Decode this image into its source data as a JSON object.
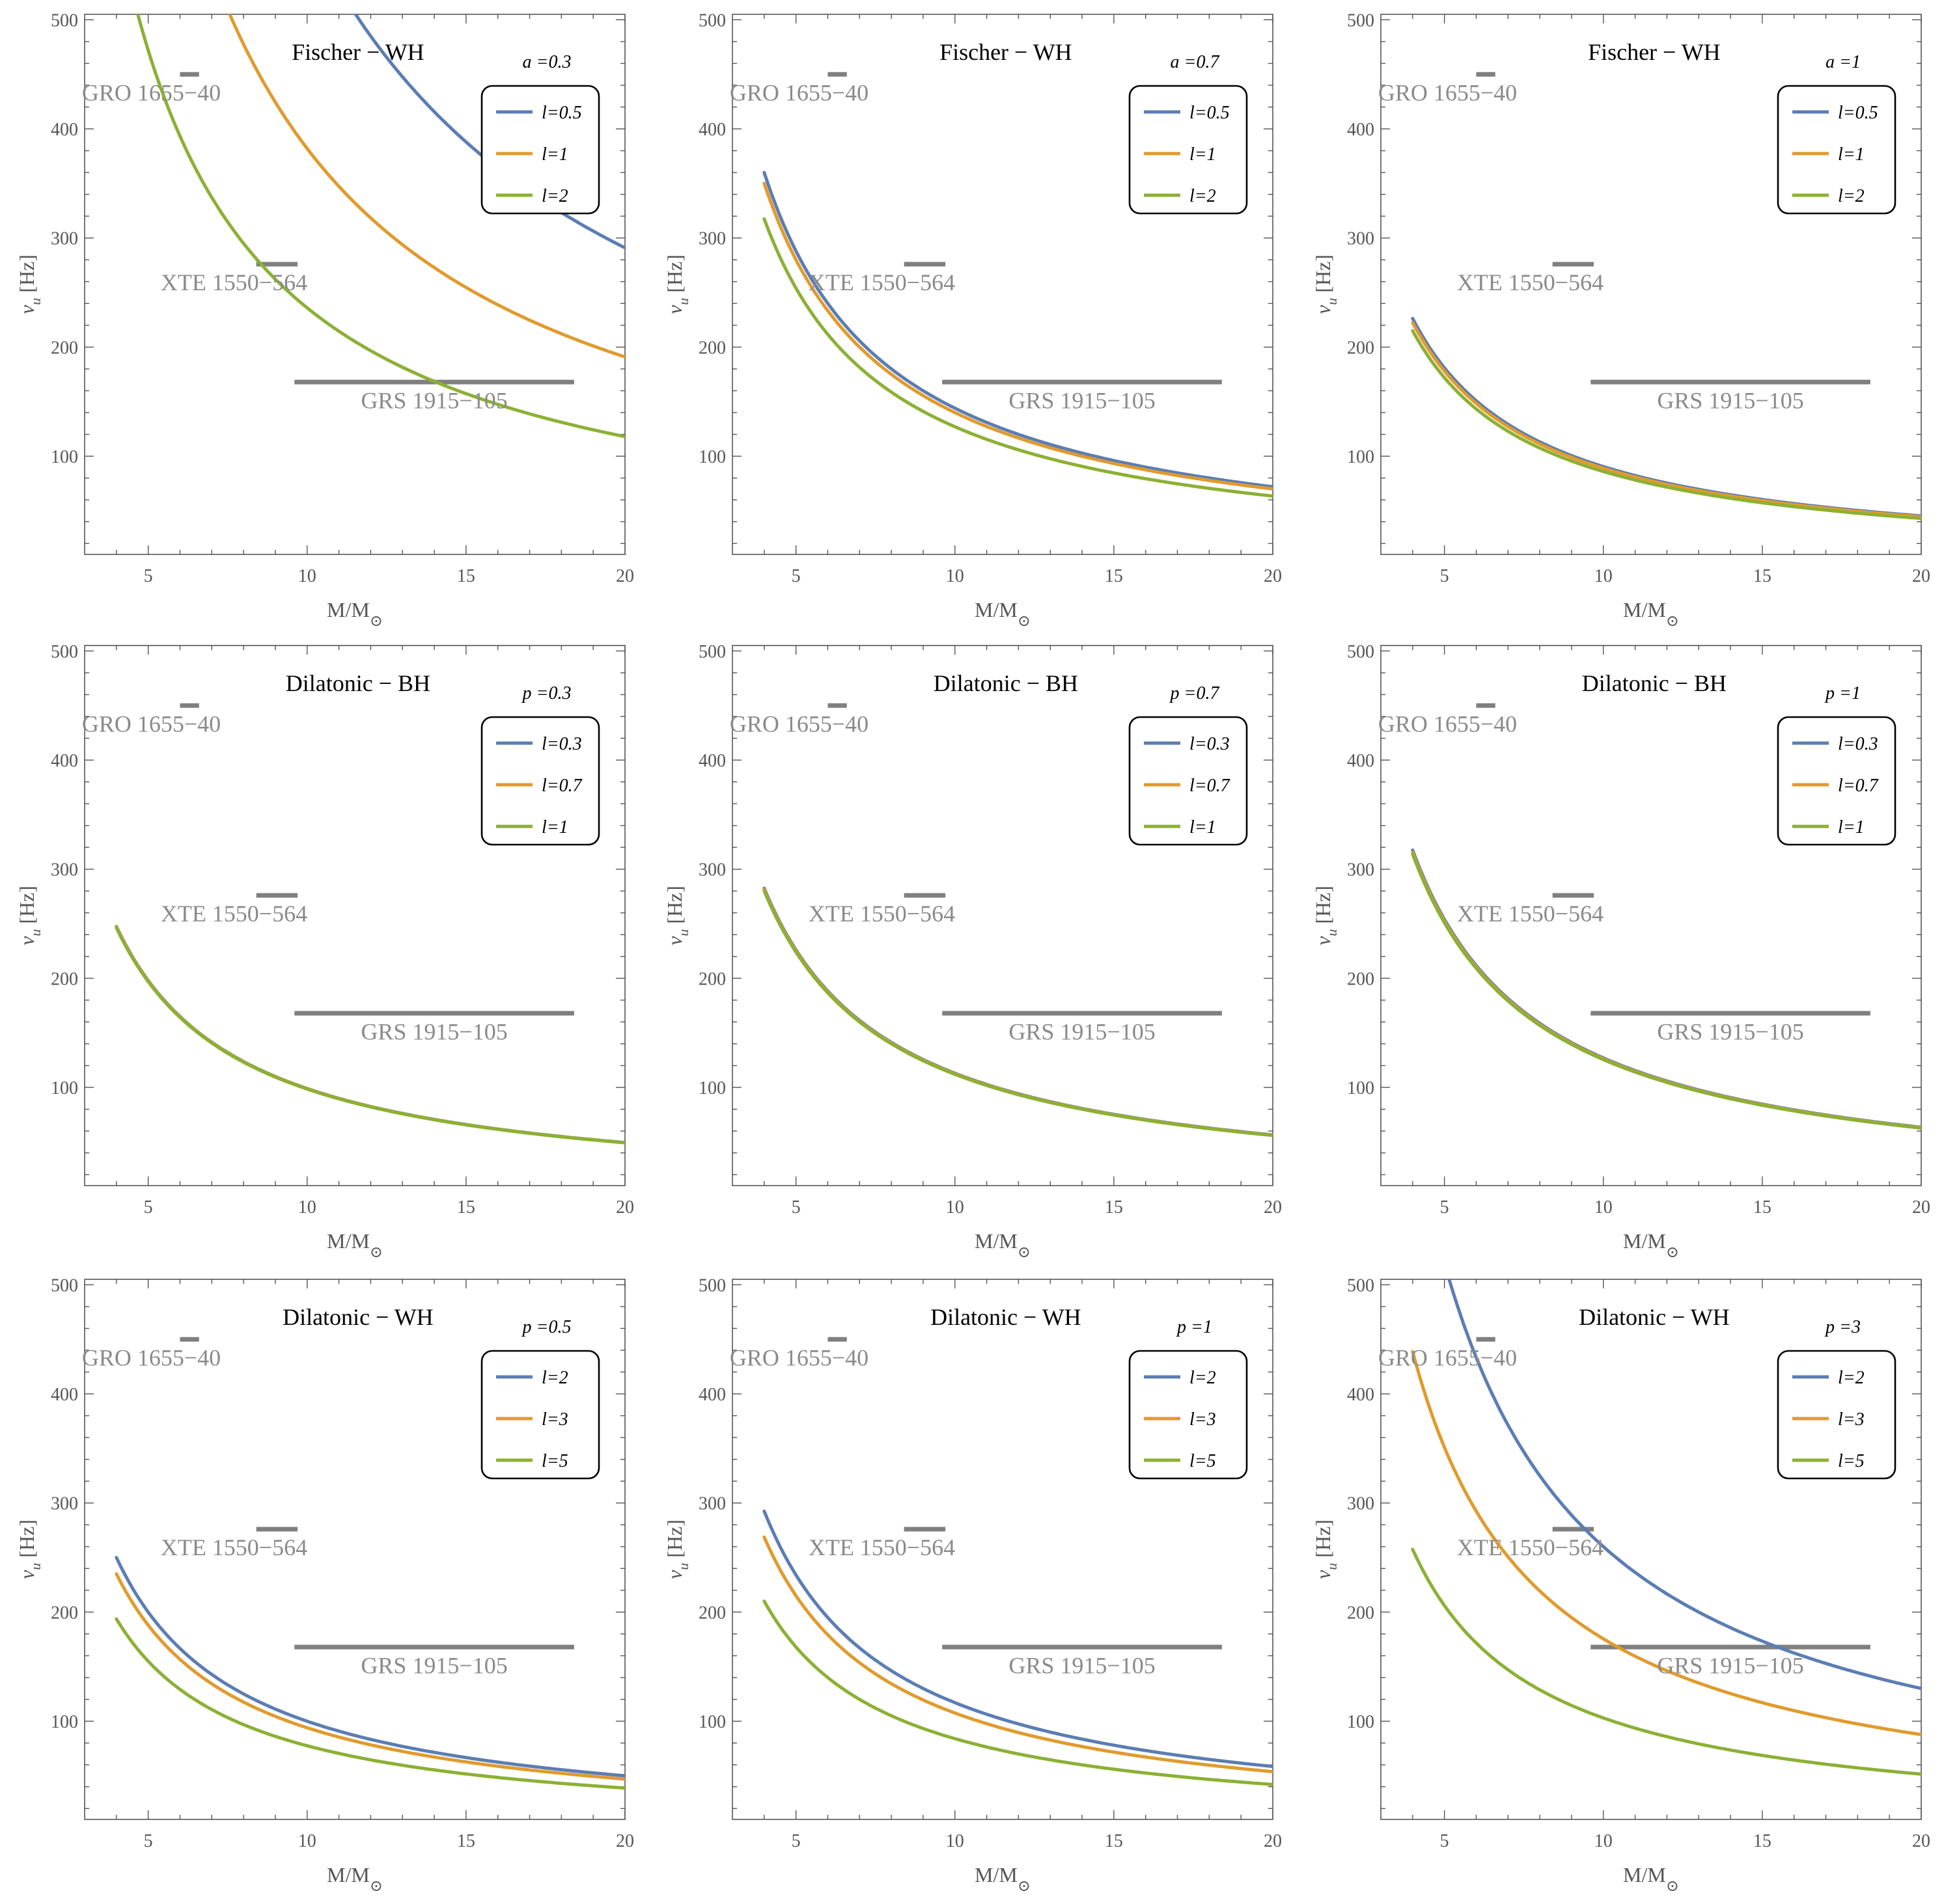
{
  "colors": {
    "series": [
      "#5b7db3",
      "#e09b2d",
      "#8cb034"
    ],
    "band": "#7f7f7f",
    "axis": "#555555"
  },
  "shared": {
    "xlabel_main": "M/M",
    "xlabel_sub": "⊙",
    "ylabel_main": "ν",
    "ylabel_sub": "u",
    "ylabel_unit": "[Hz]",
    "xlim": [
      3,
      20
    ],
    "ylim": [
      10,
      505
    ],
    "xticks": [
      5,
      10,
      15,
      20
    ],
    "yticks": [
      100,
      200,
      300,
      400,
      500
    ],
    "sources": [
      {
        "name": "GRO 1655−40",
        "x_range": [
          6.0,
          6.6
        ],
        "y": 450
      },
      {
        "name": "XTE 1550−564",
        "x_range": [
          8.4,
          9.7
        ],
        "y": 276
      },
      {
        "name": "GRS 1915−105",
        "x_range": [
          9.6,
          18.4
        ],
        "y": 168
      }
    ]
  },
  "chart_data": [
    {
      "type": "line",
      "title": "Fischer − WH",
      "param": "a =0.3",
      "x_start": 4,
      "x_end": 20,
      "series": [
        {
          "name": "l=0.5",
          "k": 5820
        },
        {
          "name": "l=1",
          "k": 3820
        },
        {
          "name": "l=2",
          "k": 2360
        }
      ]
    },
    {
      "type": "line",
      "title": "Fischer − WH",
      "param": "a =0.7",
      "x_start": 4,
      "x_end": 20,
      "series": [
        {
          "name": "l=0.5",
          "k": 1440
        },
        {
          "name": "l=1",
          "k": 1400
        },
        {
          "name": "l=2",
          "k": 1270
        }
      ]
    },
    {
      "type": "line",
      "title": "Fischer − WH",
      "param": "a =1",
      "x_start": 4,
      "x_end": 20,
      "series": [
        {
          "name": "l=0.5",
          "k": 905
        },
        {
          "name": "l=1",
          "k": 890
        },
        {
          "name": "l=2",
          "k": 860
        }
      ]
    },
    {
      "type": "line",
      "title": "Dilatonic − BH",
      "param": "p =0.3",
      "x_start": 4,
      "x_end": 20,
      "series": [
        {
          "name": "l=0.3",
          "k": 990
        },
        {
          "name": "l=0.7",
          "k": 988
        },
        {
          "name": "l=1",
          "k": 985
        }
      ]
    },
    {
      "type": "line",
      "title": "Dilatonic − BH",
      "param": "p =0.7",
      "x_start": 4,
      "x_end": 20,
      "series": [
        {
          "name": "l=0.3",
          "k": 1130
        },
        {
          "name": "l=0.7",
          "k": 1125
        },
        {
          "name": "l=1",
          "k": 1120
        }
      ]
    },
    {
      "type": "line",
      "title": "Dilatonic − BH",
      "param": "p =1",
      "x_start": 4,
      "x_end": 20,
      "series": [
        {
          "name": "l=0.3",
          "k": 1270
        },
        {
          "name": "l=0.7",
          "k": 1262
        },
        {
          "name": "l=1",
          "k": 1255
        }
      ]
    },
    {
      "type": "line",
      "title": "Dilatonic − WH",
      "param": "p =0.5",
      "x_start": 4,
      "x_end": 20,
      "series": [
        {
          "name": "l=2",
          "k": 1000
        },
        {
          "name": "l=3",
          "k": 940
        },
        {
          "name": "l=5",
          "k": 775
        }
      ]
    },
    {
      "type": "line",
      "title": "Dilatonic − WH",
      "param": "p =1",
      "x_start": 4,
      "x_end": 20,
      "series": [
        {
          "name": "l=2",
          "k": 1170
        },
        {
          "name": "l=3",
          "k": 1075
        },
        {
          "name": "l=5",
          "k": 840
        }
      ]
    },
    {
      "type": "line",
      "title": "Dilatonic − WH",
      "param": "p =3",
      "x_start": 4,
      "x_end": 20,
      "series": [
        {
          "name": "l=2",
          "k": 2600
        },
        {
          "name": "l=3",
          "k": 1755
        },
        {
          "name": "l=5",
          "k": 1030
        }
      ]
    }
  ]
}
